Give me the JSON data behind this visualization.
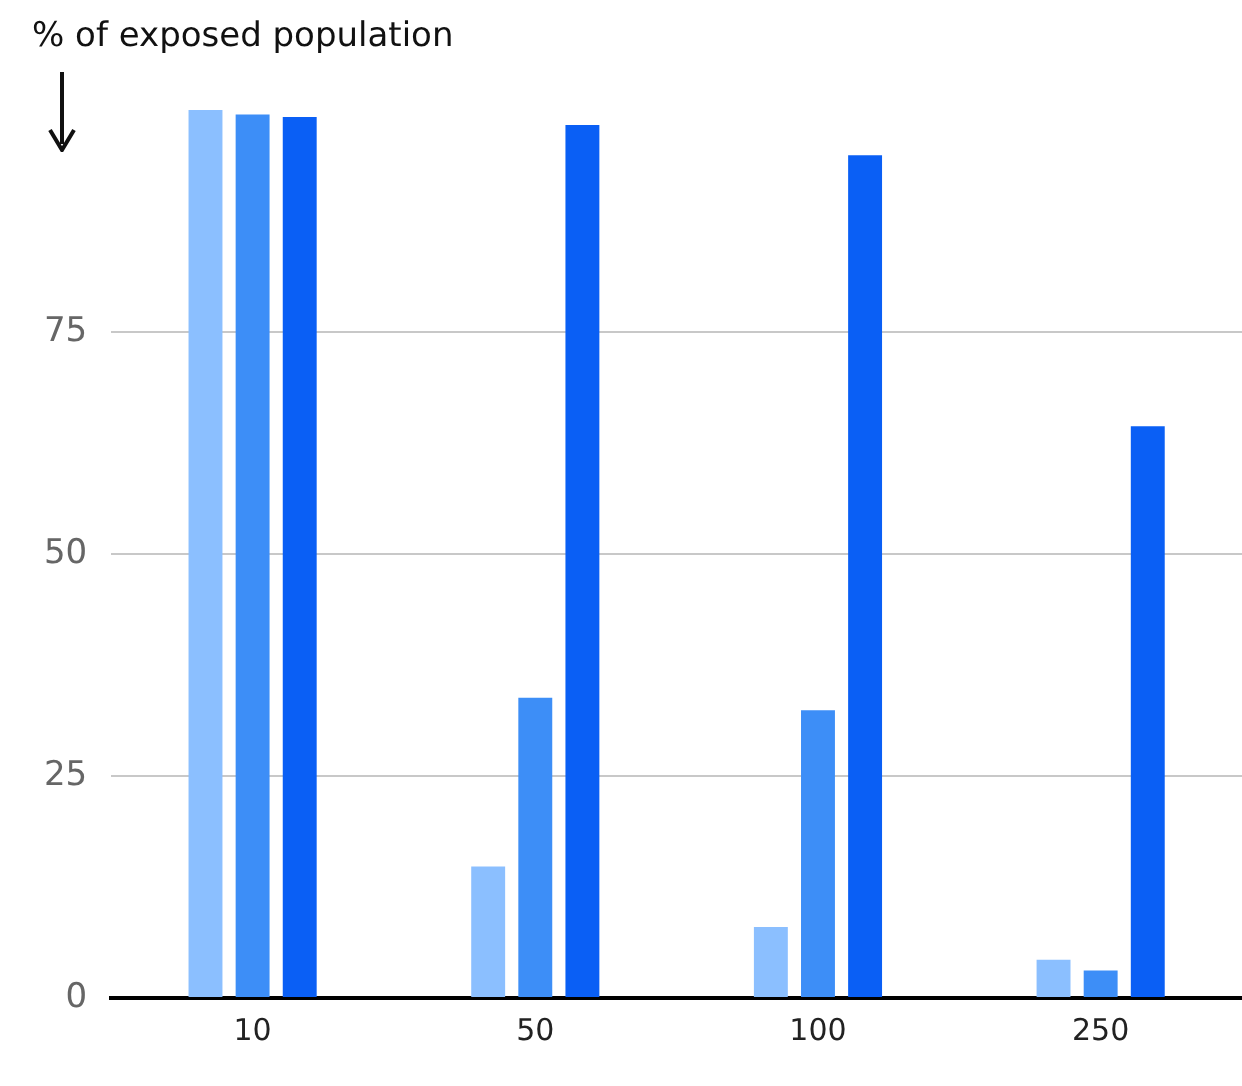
{
  "chart_data": {
    "type": "bar",
    "ylabel": "% of exposed population",
    "categories": [
      "10",
      "50",
      "100",
      "250"
    ],
    "series": [
      {
        "color": "#8bbfff",
        "values": [
          100,
          14.8,
          8,
          4.3
        ]
      },
      {
        "color": "#3d8ef7",
        "values": [
          99.5,
          33.8,
          32.4,
          3.1
        ]
      },
      {
        "color": "#0a5ff5",
        "values": [
          99.2,
          98.3,
          94.9,
          64.4
        ]
      }
    ],
    "ylim": [
      0,
      100
    ],
    "yticks": [
      0,
      25,
      50,
      75
    ],
    "grid": "y"
  }
}
